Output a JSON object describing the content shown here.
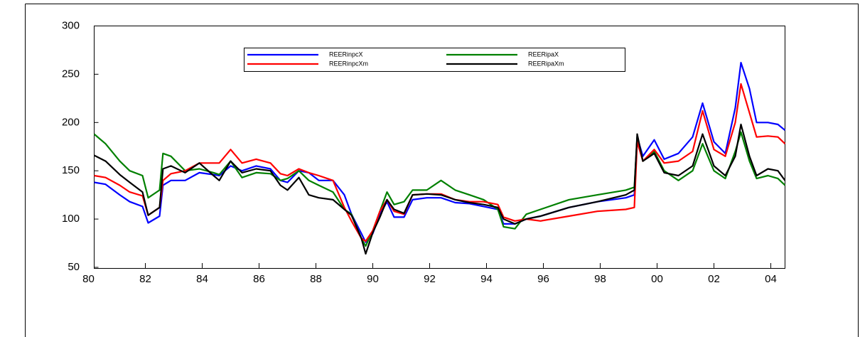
{
  "chart_data": {
    "type": "line",
    "x": [
      1980.2,
      1980.6,
      1981.1,
      1981.45,
      1981.9,
      1982.1,
      1982.5,
      1982.62,
      1982.9,
      1983.4,
      1983.9,
      1984.4,
      1984.6,
      1985.0,
      1985.4,
      1985.9,
      1986.4,
      1986.75,
      1987.0,
      1987.4,
      1987.75,
      1988.1,
      1988.6,
      1989.0,
      1989.25,
      1989.6,
      1989.75,
      1990.0,
      1990.25,
      1990.5,
      1990.75,
      1991.1,
      1991.4,
      1991.9,
      1992.4,
      1992.9,
      1993.4,
      1993.9,
      1994.4,
      1994.6,
      1995.0,
      1995.4,
      1995.9,
      1996.9,
      1997.9,
      1998.9,
      1999.2,
      1999.3,
      1999.5,
      1999.9,
      2000.25,
      2000.75,
      2001.25,
      2001.6,
      2002.0,
      2002.4,
      2002.75,
      2002.95,
      2003.25,
      2003.5,
      2003.9,
      2004.25,
      2004.5
    ],
    "series": [
      {
        "name": "REERinpcX",
        "color": "#0000ff",
        "values": [
          138,
          136,
          125,
          118,
          113,
          96,
          103,
          135,
          140,
          140,
          148,
          146,
          145,
          155,
          150,
          155,
          152,
          140,
          138,
          150,
          148,
          140,
          140,
          125,
          105,
          85,
          76,
          85,
          105,
          118,
          102,
          102,
          120,
          122,
          122,
          117,
          116,
          113,
          110,
          95,
          95,
          100,
          103,
          112,
          118,
          122,
          125,
          185,
          165,
          182,
          162,
          168,
          185,
          220,
          180,
          168,
          215,
          262,
          235,
          200,
          200,
          198,
          192
        ]
      },
      {
        "name": "REERipaX",
        "color": "#008000",
        "values": [
          188,
          178,
          160,
          150,
          145,
          122,
          130,
          168,
          165,
          150,
          152,
          148,
          146,
          160,
          143,
          148,
          147,
          140,
          142,
          150,
          140,
          135,
          128,
          110,
          105,
          80,
          72,
          88,
          108,
          128,
          115,
          118,
          130,
          130,
          140,
          130,
          125,
          120,
          110,
          92,
          90,
          105,
          110,
          120,
          125,
          130,
          133,
          185,
          160,
          170,
          150,
          140,
          150,
          178,
          150,
          142,
          170,
          190,
          160,
          142,
          145,
          142,
          135
        ]
      },
      {
        "name": "REERinpcXm",
        "color": "#ff0000",
        "values": [
          145,
          143,
          135,
          128,
          124,
          104,
          112,
          140,
          147,
          150,
          158,
          158,
          158,
          172,
          158,
          162,
          158,
          147,
          145,
          152,
          148,
          145,
          140,
          112,
          98,
          80,
          77,
          88,
          108,
          120,
          108,
          105,
          125,
          126,
          126,
          120,
          118,
          118,
          115,
          102,
          98,
          100,
          98,
          103,
          108,
          110,
          112,
          180,
          160,
          172,
          158,
          160,
          170,
          212,
          172,
          165,
          200,
          240,
          210,
          185,
          186,
          185,
          178
        ]
      },
      {
        "name": "REERipaXm",
        "color": "#000000",
        "values": [
          166,
          160,
          146,
          138,
          128,
          104,
          112,
          152,
          155,
          148,
          158,
          145,
          140,
          160,
          148,
          152,
          150,
          135,
          130,
          143,
          125,
          122,
          120,
          110,
          104,
          80,
          64,
          86,
          102,
          120,
          110,
          106,
          125,
          126,
          125,
          120,
          117,
          115,
          112,
          100,
          95,
          100,
          103,
          112,
          118,
          125,
          130,
          188,
          160,
          168,
          148,
          145,
          155,
          188,
          155,
          145,
          165,
          198,
          165,
          145,
          152,
          150,
          140
        ]
      }
    ],
    "xlim": [
      1980.2,
      2004.5
    ],
    "xticks": [
      {
        "value": 1980,
        "label": "80"
      },
      {
        "value": 1982,
        "label": "82"
      },
      {
        "value": 1984,
        "label": "84"
      },
      {
        "value": 1986,
        "label": "86"
      },
      {
        "value": 1988,
        "label": "88"
      },
      {
        "value": 1990,
        "label": "90"
      },
      {
        "value": 1992,
        "label": "92"
      },
      {
        "value": 1994,
        "label": "94"
      },
      {
        "value": 1996,
        "label": "96"
      },
      {
        "value": 1998,
        "label": "98"
      },
      {
        "value": 2000,
        "label": "00"
      },
      {
        "value": 2002,
        "label": "02"
      },
      {
        "value": 2004,
        "label": "04"
      }
    ],
    "ylim": [
      50,
      300
    ],
    "yticks": [
      50,
      100,
      150,
      200,
      250,
      300
    ]
  }
}
